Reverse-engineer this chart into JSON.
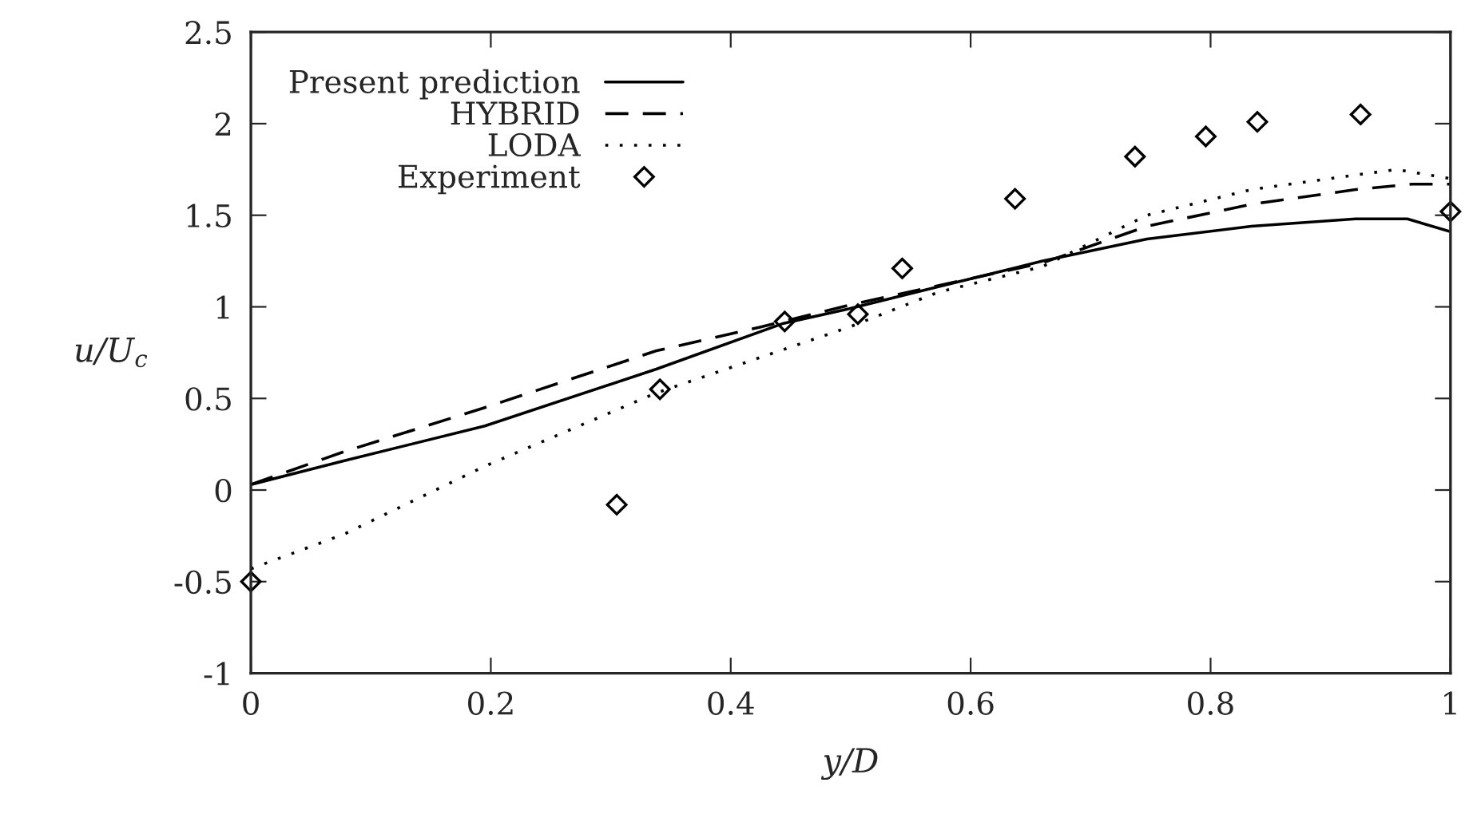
{
  "chart_data": {
    "type": "line",
    "xlabel": "y/D",
    "ylabel": "u/U$_{c}$",
    "xlim": [
      0,
      1
    ],
    "ylim": [
      -1,
      2.5
    ],
    "xticks": [
      0,
      0.2,
      0.4,
      0.6,
      0.8,
      1
    ],
    "yticks": [
      -1,
      -0.5,
      0,
      0.5,
      1,
      1.5,
      2,
      2.5
    ],
    "grid": false,
    "legend": "top left",
    "series": [
      {
        "name": "Present prediction",
        "color": "#000000",
        "line_style": "solid",
        "marker": "none",
        "x": [
          0,
          0.078,
          0.195,
          0.338,
          0.444,
          0.499,
          0.573,
          0.66,
          0.747,
          0.834,
          0.921,
          0.964,
          1.0
        ],
        "values": [
          0.03,
          0.16,
          0.35,
          0.66,
          0.91,
          0.99,
          1.11,
          1.25,
          1.37,
          1.44,
          1.48,
          1.48,
          1.41
        ]
      },
      {
        "name": "HYBRID",
        "color": "#000000",
        "line_style": "dashed",
        "marker": "none",
        "x": [
          0,
          0.078,
          0.195,
          0.338,
          0.425,
          0.499,
          0.66,
          0.747,
          0.834,
          0.921,
          0.968,
          1.0
        ],
        "values": [
          0.03,
          0.21,
          0.45,
          0.76,
          0.89,
          1.01,
          1.24,
          1.44,
          1.56,
          1.64,
          1.67,
          1.67
        ]
      },
      {
        "name": "LODA",
        "color": "#000000",
        "line_style": "dotted",
        "marker": "none",
        "x": [
          0,
          0.078,
          0.195,
          0.338,
          0.499,
          0.573,
          0.66,
          0.747,
          0.834,
          0.921,
          0.955,
          1.0
        ],
        "values": [
          -0.43,
          -0.24,
          0.13,
          0.53,
          0.89,
          1.08,
          1.22,
          1.5,
          1.64,
          1.72,
          1.75,
          1.7
        ]
      },
      {
        "name": "Experiment",
        "type": "scatter",
        "color": "#000000",
        "marker": "diamond",
        "x": [
          0,
          0.305,
          0.341,
          0.445,
          0.506,
          0.543,
          0.637,
          0.737,
          0.796,
          0.839,
          0.925,
          1.0
        ],
        "values": [
          -0.5,
          -0.08,
          0.55,
          0.92,
          0.96,
          1.21,
          1.59,
          1.82,
          1.93,
          2.01,
          2.05,
          1.52
        ]
      }
    ]
  }
}
